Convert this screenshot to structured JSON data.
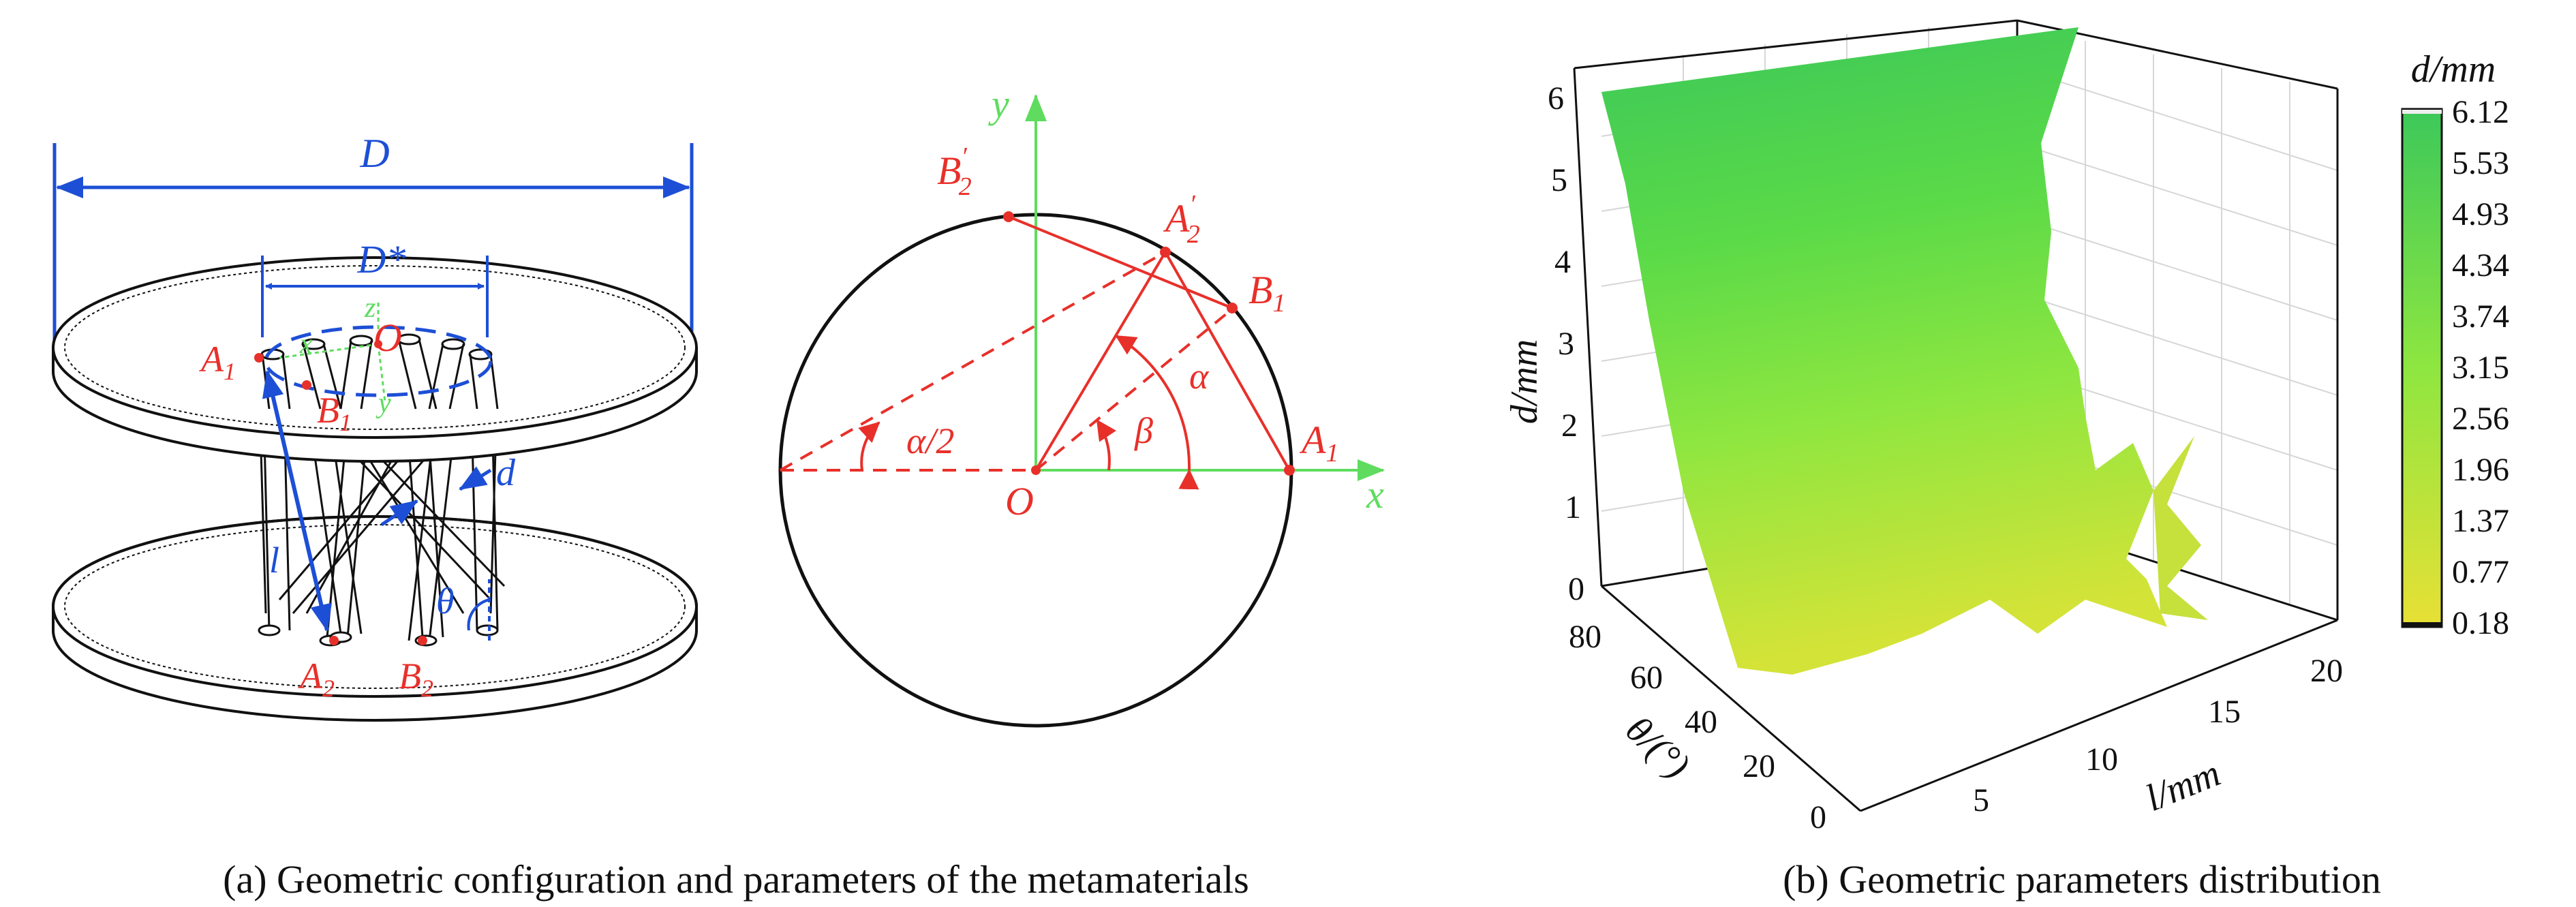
{
  "panel_a": {
    "caption": "(a) Geometric configuration and parameters of the metamaterials",
    "schematic_labels": {
      "D": "D",
      "D_star": "D*",
      "O": "O",
      "z": "z",
      "x": "x",
      "y": "y",
      "A1": "A",
      "A1_sub": "1",
      "B1": "B",
      "B1_sub": "1",
      "A2": "A",
      "A2_sub": "2",
      "B2": "B",
      "B2_sub": "2",
      "l": "l",
      "d": "d",
      "theta": "θ"
    },
    "circle_labels": {
      "y": "y",
      "x": "x",
      "O": "O",
      "A1": "A",
      "A1_sub": "1",
      "B1": "B",
      "B1_sub": "1",
      "A2p": "A",
      "A2p_sub": "2",
      "A2p_sup": "′",
      "B2p": "B",
      "B2p_sub": "2",
      "B2p_sup": "′",
      "alpha": "α",
      "beta": "β",
      "half_alpha": "α/2"
    }
  },
  "panel_b": {
    "caption": "(b) Geometric parameters distribution",
    "colors": {
      "high": "#3cc85a",
      "mid": "#8ee640",
      "low": "#e8e035"
    }
  },
  "chart_data": {
    "type": "surface",
    "zlabel": "d/mm",
    "xlabel": "l/mm",
    "ylabel": "θ/(°)",
    "x_ticks": [
      "5",
      "10",
      "15",
      "20"
    ],
    "y_ticks": [
      "0",
      "20",
      "40",
      "60",
      "80"
    ],
    "z_ticks": [
      "0",
      "1",
      "2",
      "3",
      "4",
      "5",
      "6"
    ],
    "colorbar_title": "d/mm",
    "colorbar_ticks": [
      "6.12",
      "5.53",
      "4.93",
      "4.34",
      "3.74",
      "3.15",
      "2.56",
      "1.96",
      "1.37",
      "0.77",
      "0.18"
    ],
    "zlim": [
      0,
      6.12
    ],
    "corner_values": [
      {
        "l": 2,
        "theta": 90,
        "d": 6.0
      },
      {
        "l": 22,
        "theta": 90,
        "d": 6.12
      },
      {
        "l": 2,
        "theta": 0,
        "d": 1.2
      },
      {
        "l": 22,
        "theta": 0,
        "d": 0.18
      }
    ]
  }
}
